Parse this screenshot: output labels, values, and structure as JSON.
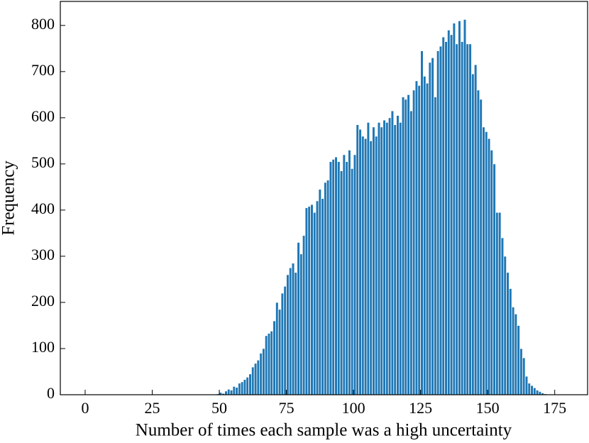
{
  "chart_data": {
    "type": "histogram",
    "xlabel": "Number of times each sample was a high uncertainty",
    "ylabel": "Frequency",
    "color": "#1f77b4",
    "bins": [
      48,
      49,
      50,
      51,
      52,
      53,
      54,
      55,
      56,
      57,
      58,
      59,
      60,
      61,
      62,
      63,
      64,
      65,
      66,
      67,
      68,
      69,
      70,
      71,
      72,
      73,
      74,
      75,
      76,
      77,
      78,
      79,
      80,
      81,
      82,
      83,
      84,
      85,
      86,
      87,
      88,
      89,
      90,
      91,
      92,
      93,
      94,
      95,
      96,
      97,
      98,
      99,
      100,
      101,
      102,
      103,
      104,
      105,
      106,
      107,
      108,
      109,
      110,
      111,
      112,
      113,
      114,
      115,
      116,
      117,
      118,
      119,
      120,
      121,
      122,
      123,
      124,
      125,
      126,
      127,
      128,
      129,
      130,
      131,
      132,
      133,
      134,
      135,
      136,
      137,
      138,
      139,
      140,
      141,
      142,
      143,
      144,
      145,
      146,
      147,
      148,
      149,
      150,
      151,
      152,
      153,
      154,
      155,
      156,
      157,
      158,
      159,
      160,
      161,
      162,
      163,
      164,
      165,
      166,
      167,
      168,
      169,
      170,
      171,
      172,
      173,
      174
    ],
    "counts": [
      1,
      2,
      5,
      3,
      8,
      12,
      10,
      18,
      16,
      25,
      28,
      33,
      38,
      45,
      60,
      68,
      75,
      90,
      100,
      128,
      133,
      138,
      160,
      200,
      185,
      220,
      235,
      260,
      275,
      285,
      265,
      330,
      305,
      345,
      405,
      408,
      412,
      395,
      420,
      445,
      425,
      460,
      465,
      505,
      510,
      515,
      505,
      485,
      520,
      505,
      530,
      490,
      520,
      585,
      575,
      560,
      555,
      590,
      550,
      580,
      560,
      590,
      580,
      595,
      590,
      600,
      615,
      585,
      605,
      590,
      645,
      640,
      650,
      615,
      660,
      680,
      670,
      745,
      690,
      675,
      720,
      730,
      645,
      745,
      755,
      775,
      765,
      790,
      780,
      805,
      760,
      810,
      765,
      813,
      760,
      760,
      695,
      715,
      660,
      640,
      580,
      570,
      555,
      530,
      500,
      395,
      395,
      340,
      300,
      265,
      230,
      190,
      175,
      150,
      100,
      80,
      40,
      25,
      20,
      15,
      10,
      7,
      4,
      2,
      1,
      1
    ],
    "xlim": [
      -9.25,
      187.25
    ],
    "ylim": [
      0,
      852
    ],
    "xticks": [
      0,
      25,
      50,
      75,
      100,
      125,
      150,
      175
    ],
    "yticks": [
      0,
      100,
      200,
      300,
      400,
      500,
      600,
      700,
      800
    ]
  }
}
